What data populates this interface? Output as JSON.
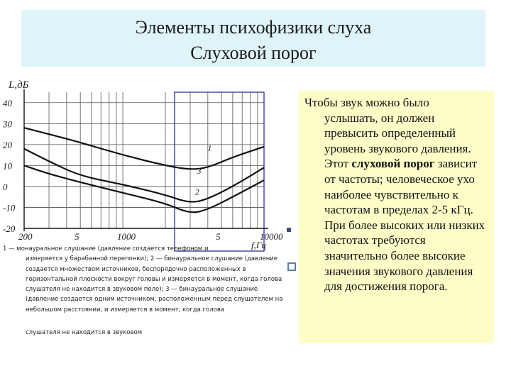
{
  "title": {
    "line1": "Элементы психофизики слуха",
    "line2": "Слуховой порог"
  },
  "chart_data": {
    "type": "line",
    "y_axis_label": "L,дБ",
    "y_ticks": [
      "40",
      "30",
      "20",
      "10",
      "0",
      "-10",
      "-20"
    ],
    "y_range": [
      -20,
      45
    ],
    "x_ticks": [
      "200",
      "5",
      "1000",
      "5",
      "10000"
    ],
    "x_axis_label": "f,Гц",
    "x_scale": "log",
    "curve_labels": [
      "1",
      "3",
      "2"
    ],
    "series": [
      {
        "name": "1",
        "points": [
          [
            200,
            28
          ],
          [
            300,
            25
          ],
          [
            500,
            21
          ],
          [
            1000,
            15
          ],
          [
            2000,
            10
          ],
          [
            3000,
            8
          ],
          [
            4000,
            9
          ],
          [
            6000,
            14
          ],
          [
            10000,
            19
          ]
        ]
      },
      {
        "name": "3",
        "points": [
          [
            200,
            18
          ],
          [
            300,
            12
          ],
          [
            500,
            5
          ],
          [
            1000,
            1
          ],
          [
            2000,
            -4
          ],
          [
            3000,
            -8
          ],
          [
            4000,
            -6
          ],
          [
            6000,
            0
          ],
          [
            10000,
            9
          ]
        ]
      },
      {
        "name": "2",
        "points": [
          [
            200,
            10
          ],
          [
            300,
            6
          ],
          [
            500,
            2
          ],
          [
            1000,
            -3
          ],
          [
            2000,
            -8
          ],
          [
            3000,
            -13
          ],
          [
            4000,
            -11
          ],
          [
            6000,
            -5
          ],
          [
            10000,
            3
          ]
        ]
      }
    ]
  },
  "caption": {
    "line1": "1 — монауральное слушание (давление создается телефоном и",
    "body": "измеряется у барабанной перепонки); 2 — бинауральное слушание (давление создается множеством источников, беспорядочно расположенных в горизонтальной плоскости вокруг головы и измеряется в момент, когда голова слушателя не находится в звуковом поле); 3 — бинауральное слушание (давление создается одним источником, расположенным перед слушателем на небольшом расстоянии, и измеряется в момент, когда голова",
    "last": "слушателя не находится в звуковом"
  },
  "side_text": {
    "first_line": "Чтобы звук можно было",
    "rest_before": "услышать, он должен превысить определенный уровень звукового давления. Этот ",
    "bold1": "слуховой порог",
    "rest_after": " зависит от частоты; человеческое ухо наиболее чувствительно к частотам в пределах 2-5 кГц. При более высоких или низких частотах требуются значительно более высокие значения звукового давления для достижения порога."
  },
  "colors": {
    "title_bg": "#dff4f8",
    "side_bg": "#fdfdc8",
    "curve": "#111111",
    "highlight_frame": "#3b3fa0"
  }
}
